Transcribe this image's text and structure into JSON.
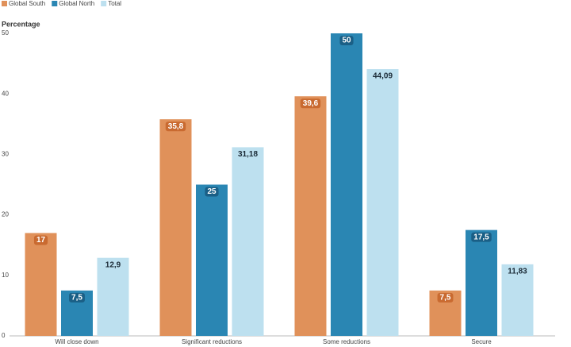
{
  "chart_data": {
    "type": "bar",
    "y_label": "Percentage",
    "categories": [
      "Will close down",
      "Significant reductions",
      "Some reductions",
      "Secure"
    ],
    "series": [
      {
        "name": "Global South",
        "color": "#e0915a",
        "values": [
          17,
          35.8,
          39.6,
          7.5
        ],
        "value_labels": [
          "17",
          "35,8",
          "39,6",
          "7,5"
        ]
      },
      {
        "name": "Global North",
        "color": "#2a86b3",
        "values": [
          7.5,
          25,
          50,
          17.5
        ],
        "value_labels": [
          "7,5",
          "25",
          "50",
          "17,5"
        ]
      },
      {
        "name": "Total",
        "color": "#bde0ef",
        "values": [
          12.9,
          31.18,
          44.09,
          11.83
        ],
        "value_labels": [
          "12,9",
          "31,18",
          "44,09",
          "11,83"
        ]
      }
    ],
    "ylim": [
      0,
      50
    ],
    "yticks": [
      0,
      10,
      20,
      30,
      40,
      50
    ],
    "grid": false
  }
}
